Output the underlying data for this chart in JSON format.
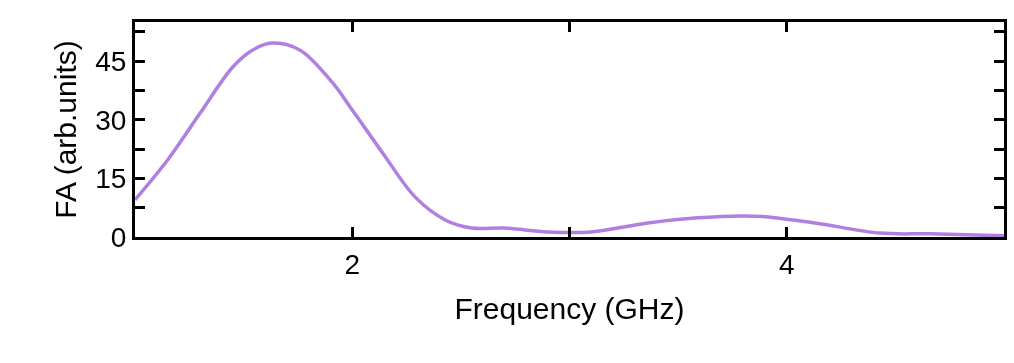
{
  "chart_data": {
    "type": "line",
    "xlabel": "Frequency (GHz)",
    "ylabel": "FA (arb.units)",
    "x": [
      1.0,
      1.15,
      1.3,
      1.45,
      1.54,
      1.63,
      1.76,
      1.91,
      2.0,
      2.14,
      2.29,
      2.43,
      2.55,
      2.7,
      2.9,
      3.1,
      3.36,
      3.59,
      3.79,
      3.9,
      4.13,
      4.43,
      4.66,
      5.0
    ],
    "series": [
      {
        "color": "#b07fe0",
        "values": [
          9.5,
          19.7,
          31.7,
          43.5,
          47.8,
          49.6,
          47.8,
          39.4,
          32.5,
          21.5,
          10.2,
          4.3,
          2.3,
          2.3,
          1.3,
          1.3,
          3.6,
          4.9,
          5.4,
          5.2,
          3.6,
          1.0,
          0.8,
          0.3
        ]
      }
    ],
    "xlim": [
      1,
      5
    ],
    "ylim": [
      0,
      55
    ],
    "xticks": [
      2,
      {
        "value": 3,
        "label": null
      },
      4
    ],
    "yticks": [
      0,
      {
        "value": 7.5,
        "label": null
      },
      15,
      {
        "value": 22.5,
        "label": null
      },
      30,
      {
        "value": 37.5,
        "label": null
      },
      45,
      {
        "value": 52.5,
        "label": null
      }
    ],
    "marker": "none",
    "line_style": "solid"
  }
}
